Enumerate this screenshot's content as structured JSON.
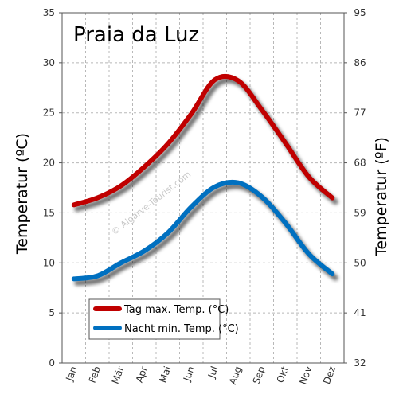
{
  "chart_data": {
    "type": "line",
    "title": "Praia da Luz",
    "ylabel_left": "Temperatur (ºC)",
    "ylabel_right": "Temperatur (ºF)",
    "categories": [
      "Jan",
      "Feb",
      "Mär",
      "Apr",
      "Mai",
      "Jun",
      "Jul",
      "Aug",
      "Sep",
      "Okt",
      "Nov",
      "Dez"
    ],
    "ylim": [
      0,
      35
    ],
    "yticks_left": [
      0,
      5,
      10,
      15,
      20,
      25,
      30,
      35
    ],
    "yticks_right": [
      "32",
      "41",
      "50",
      "59",
      "68",
      "77",
      "86",
      "95"
    ],
    "grid": true,
    "legend_position": "bottom-left",
    "watermark": "© Algarve-Tourist.com",
    "series": [
      {
        "name": "Tag max. Temp. (°C)",
        "color": "#c00000",
        "values": [
          15.8,
          16.5,
          17.7,
          19.6,
          21.9,
          24.9,
          28.3,
          28.2,
          25.3,
          22.0,
          18.6,
          16.5
        ]
      },
      {
        "name": "Nacht min. Temp. (°C)",
        "color": "#0070c0",
        "values": [
          8.4,
          8.7,
          10.0,
          11.2,
          13.0,
          15.6,
          17.6,
          18.0,
          16.6,
          14.0,
          10.9,
          8.9
        ]
      }
    ]
  }
}
